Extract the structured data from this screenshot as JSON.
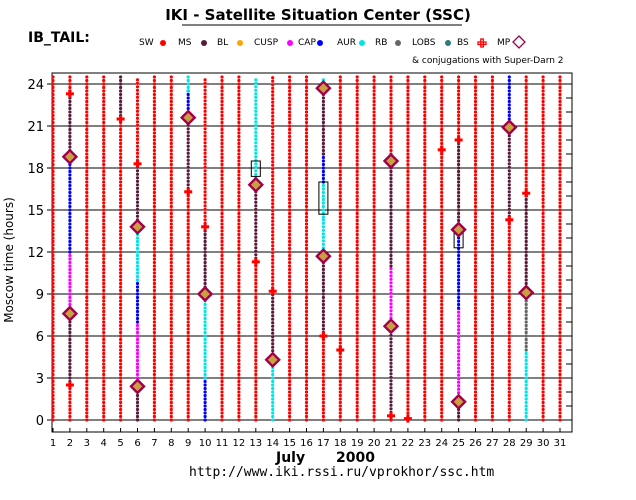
{
  "header": {
    "title": "IKI - Satellite Situation Center (SSC)",
    "satellite": "IB_TAIL:",
    "conjugation_note": "& conjugations with Super-Darn 2"
  },
  "legend": [
    {
      "label": "SW",
      "color": "#ff0000",
      "shape": "dot"
    },
    {
      "label": "MS",
      "color": "#5a1a3a",
      "shape": "dot"
    },
    {
      "label": "BL",
      "color": "#ffa500",
      "shape": "dot"
    },
    {
      "label": "CUSP",
      "color": "#ff00ff",
      "shape": "dot"
    },
    {
      "label": "CAP",
      "color": "#0000ff",
      "shape": "dot"
    },
    {
      "label": "AUR",
      "color": "#00e5e5",
      "shape": "dot"
    },
    {
      "label": "RB",
      "color": "#666666",
      "shape": "dot"
    },
    {
      "label": "LOBS",
      "color": "#2e7d7d",
      "shape": "dot"
    },
    {
      "label": "BS",
      "color": "#ff0000",
      "shape": "plus"
    },
    {
      "label": "MP",
      "color": "#a0004a",
      "shape": "diamond"
    }
  ],
  "footer": {
    "month": "July",
    "year": "2000",
    "url": "http://www.iki.rssi.ru/vprokhor/ssc.htm"
  },
  "chart_data": {
    "type": "scatter",
    "xlabel": "",
    "ylabel": "Moscow time (hours)",
    "x_ticks": [
      1,
      2,
      3,
      4,
      5,
      6,
      7,
      8,
      9,
      10,
      11,
      12,
      13,
      14,
      15,
      16,
      17,
      18,
      19,
      20,
      21,
      22,
      23,
      24,
      25,
      26,
      27,
      28,
      29,
      30,
      31
    ],
    "y_ticks": [
      0,
      3,
      6,
      9,
      12,
      15,
      18,
      21,
      24
    ],
    "ylim": [
      0,
      24.5
    ],
    "xlim": [
      1,
      31
    ],
    "grid": true,
    "colors": {
      "SW": "#ff0000",
      "MS": "#5a1a3a",
      "CUSP": "#ff00ff",
      "CAP": "#0000ff",
      "AUR": "#00e5e5",
      "RB": "#666666",
      "BS": "#ff0000",
      "MP": "#a0004a",
      "conj_fill": "#c8a040"
    },
    "region_segments": [
      {
        "day": 1,
        "from": 0,
        "to": 24.5,
        "region": "SW"
      },
      {
        "day": 2,
        "from": 0,
        "to": 2.5,
        "region": "SW"
      },
      {
        "day": 2,
        "from": 2.5,
        "to": 7.5,
        "region": "MS"
      },
      {
        "day": 2,
        "from": 7.5,
        "to": 12,
        "region": "CUSP"
      },
      {
        "day": 2,
        "from": 12,
        "to": 18.5,
        "region": "CAP"
      },
      {
        "day": 2,
        "from": 18.5,
        "to": 23.5,
        "region": "MS"
      },
      {
        "day": 2,
        "from": 23.5,
        "to": 24.5,
        "region": "SW"
      },
      {
        "day": 3,
        "from": 0,
        "to": 24.5,
        "region": "SW"
      },
      {
        "day": 4,
        "from": 0,
        "to": 24.5,
        "region": "SW"
      },
      {
        "day": 5,
        "from": 0,
        "to": 21.5,
        "region": "SW"
      },
      {
        "day": 5,
        "from": 21.5,
        "to": 24.5,
        "region": "MS"
      },
      {
        "day": 6,
        "from": 0,
        "to": 2.5,
        "region": "MS"
      },
      {
        "day": 6,
        "from": 2.5,
        "to": 7,
        "region": "CUSP"
      },
      {
        "day": 6,
        "from": 7,
        "to": 10,
        "region": "CAP"
      },
      {
        "day": 6,
        "from": 10,
        "to": 13.8,
        "region": "AUR"
      },
      {
        "day": 6,
        "from": 13.8,
        "to": 18.3,
        "region": "MS"
      },
      {
        "day": 6,
        "from": 18.3,
        "to": 24.5,
        "region": "SW"
      },
      {
        "day": 7,
        "from": 0,
        "to": 24.5,
        "region": "SW"
      },
      {
        "day": 8,
        "from": 0,
        "to": 24.5,
        "region": "SW"
      },
      {
        "day": 9,
        "from": 0,
        "to": 16.3,
        "region": "SW"
      },
      {
        "day": 9,
        "from": 16.3,
        "to": 21.5,
        "region": "MS"
      },
      {
        "day": 9,
        "from": 21.5,
        "to": 23.5,
        "region": "CAP"
      },
      {
        "day": 9,
        "from": 23.5,
        "to": 24.5,
        "region": "AUR"
      },
      {
        "day": 10,
        "from": 0,
        "to": 3,
        "region": "CAP"
      },
      {
        "day": 10,
        "from": 3,
        "to": 9,
        "region": "AUR"
      },
      {
        "day": 10,
        "from": 9,
        "to": 13.8,
        "region": "MS"
      },
      {
        "day": 10,
        "from": 13.8,
        "to": 24.5,
        "region": "SW"
      },
      {
        "day": 11,
        "from": 0,
        "to": 24.5,
        "region": "SW"
      },
      {
        "day": 12,
        "from": 0,
        "to": 24.5,
        "region": "SW"
      },
      {
        "day": 13,
        "from": 0,
        "to": 11.3,
        "region": "SW"
      },
      {
        "day": 13,
        "from": 11.3,
        "to": 16.8,
        "region": "MS"
      },
      {
        "day": 13,
        "from": 16.8,
        "to": 24.5,
        "region": "AUR"
      },
      {
        "day": 14,
        "from": 0,
        "to": 4.2,
        "region": "AUR"
      },
      {
        "day": 14,
        "from": 4.2,
        "to": 9.2,
        "region": "MS"
      },
      {
        "day": 14,
        "from": 9.2,
        "to": 24.5,
        "region": "SW"
      },
      {
        "day": 15,
        "from": 0,
        "to": 24.5,
        "region": "SW"
      },
      {
        "day": 16,
        "from": 0,
        "to": 24.5,
        "region": "SW"
      },
      {
        "day": 17,
        "from": 0,
        "to": 6,
        "region": "SW"
      },
      {
        "day": 17,
        "from": 6,
        "to": 11.8,
        "region": "MS"
      },
      {
        "day": 17,
        "from": 11.8,
        "to": 14.5,
        "region": "AUR"
      },
      {
        "day": 17,
        "from": 14.5,
        "to": 17,
        "region": "AUR"
      },
      {
        "day": 17,
        "from": 17,
        "to": 19,
        "region": "CAP"
      },
      {
        "day": 17,
        "from": 19,
        "to": 23.8,
        "region": "MS"
      },
      {
        "day": 17,
        "from": 23.8,
        "to": 24.5,
        "region": "AUR"
      },
      {
        "day": 18,
        "from": 0,
        "to": 24.5,
        "region": "SW"
      },
      {
        "day": 19,
        "from": 0,
        "to": 24.5,
        "region": "SW"
      },
      {
        "day": 20,
        "from": 0,
        "to": 24.5,
        "region": "SW"
      },
      {
        "day": 21,
        "from": 0,
        "to": 0.3,
        "region": "SW"
      },
      {
        "day": 21,
        "from": 0.3,
        "to": 6.8,
        "region": "MS"
      },
      {
        "day": 21,
        "from": 6.8,
        "to": 11,
        "region": "CUSP"
      },
      {
        "day": 21,
        "from": 11,
        "to": 18.5,
        "region": "MS"
      },
      {
        "day": 21,
        "from": 18.5,
        "to": 24.5,
        "region": "SW"
      },
      {
        "day": 22,
        "from": 0,
        "to": 24.5,
        "region": "SW"
      },
      {
        "day": 23,
        "from": 0,
        "to": 24.5,
        "region": "SW"
      },
      {
        "day": 24,
        "from": 0,
        "to": 24.5,
        "region": "SW"
      },
      {
        "day": 25,
        "from": 0,
        "to": 1.2,
        "region": "MS"
      },
      {
        "day": 25,
        "from": 1.2,
        "to": 8,
        "region": "CUSP"
      },
      {
        "day": 25,
        "from": 8,
        "to": 13.5,
        "region": "CAP"
      },
      {
        "day": 25,
        "from": 13.5,
        "to": 20,
        "region": "MS"
      },
      {
        "day": 25,
        "from": 20,
        "to": 24.5,
        "region": "SW"
      },
      {
        "day": 26,
        "from": 0,
        "to": 24.5,
        "region": "SW"
      },
      {
        "day": 27,
        "from": 0,
        "to": 24.5,
        "region": "SW"
      },
      {
        "day": 28,
        "from": 0,
        "to": 14.3,
        "region": "SW"
      },
      {
        "day": 28,
        "from": 14.3,
        "to": 21,
        "region": "MS"
      },
      {
        "day": 28,
        "from": 21,
        "to": 24.5,
        "region": "CAP"
      },
      {
        "day": 29,
        "from": 0,
        "to": 5,
        "region": "AUR"
      },
      {
        "day": 29,
        "from": 5,
        "to": 9,
        "region": "RB"
      },
      {
        "day": 29,
        "from": 9,
        "to": 16,
        "region": "MS"
      },
      {
        "day": 29,
        "from": 16,
        "to": 24.5,
        "region": "SW"
      },
      {
        "day": 30,
        "from": 0,
        "to": 24.5,
        "region": "SW"
      },
      {
        "day": 31,
        "from": 0,
        "to": 24.5,
        "region": "SW"
      }
    ],
    "bow_shock_crossings": [
      {
        "day": 2,
        "time": 2.5
      },
      {
        "day": 2,
        "time": 23.3
      },
      {
        "day": 5,
        "time": 21.5
      },
      {
        "day": 6,
        "time": 18.3
      },
      {
        "day": 9,
        "time": 16.3
      },
      {
        "day": 10,
        "time": 13.8
      },
      {
        "day": 13,
        "time": 11.3
      },
      {
        "day": 14,
        "time": 9.2
      },
      {
        "day": 17,
        "time": 6.0
      },
      {
        "day": 18,
        "time": 5.0
      },
      {
        "day": 21,
        "time": 0.3
      },
      {
        "day": 22,
        "time": 0.1
      },
      {
        "day": 24,
        "time": 19.3
      },
      {
        "day": 25,
        "time": 20.0
      },
      {
        "day": 28,
        "time": 14.3
      },
      {
        "day": 29,
        "time": 16.2
      }
    ],
    "magnetopause_crossings": [
      {
        "day": 2,
        "time": 7.6
      },
      {
        "day": 2,
        "time": 18.8
      },
      {
        "day": 6,
        "time": 2.4
      },
      {
        "day": 6,
        "time": 13.8
      },
      {
        "day": 9,
        "time": 21.6
      },
      {
        "day": 10,
        "time": 9.0
      },
      {
        "day": 13,
        "time": 16.8
      },
      {
        "day": 14,
        "time": 4.3
      },
      {
        "day": 17,
        "time": 11.7
      },
      {
        "day": 17,
        "time": 23.7
      },
      {
        "day": 21,
        "time": 6.7
      },
      {
        "day": 21,
        "time": 18.5
      },
      {
        "day": 25,
        "time": 1.3
      },
      {
        "day": 25,
        "time": 13.6
      },
      {
        "day": 28,
        "time": 20.9
      },
      {
        "day": 29,
        "time": 9.1
      }
    ],
    "superdarn_conjugations": [
      {
        "day": 13,
        "from": 17.4,
        "to": 18.5
      },
      {
        "day": 17,
        "from": 14.7,
        "to": 17.0
      },
      {
        "day": 25,
        "from": 12.3,
        "to": 13.5
      }
    ]
  }
}
